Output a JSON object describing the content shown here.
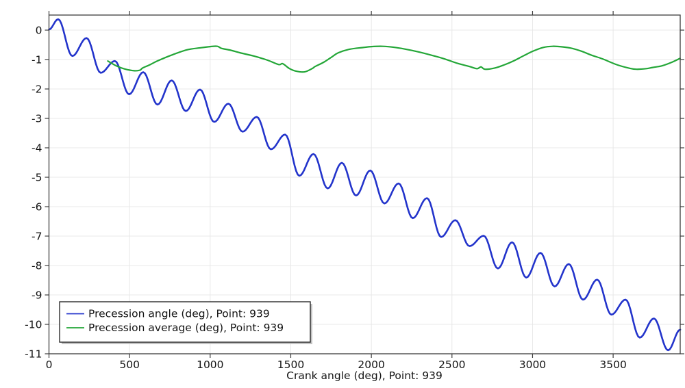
{
  "chart_data": {
    "type": "line",
    "title": "",
    "xlabel": "Crank angle (deg), Point: 939",
    "ylabel": "",
    "xlim": [
      0,
      3916
    ],
    "ylim": [
      -11,
      0.512
    ],
    "xticks": [
      0,
      500,
      1000,
      1500,
      2000,
      2500,
      3000,
      3500
    ],
    "yticks": [
      0,
      -1,
      -2,
      -3,
      -4,
      -5,
      -6,
      -7,
      -8,
      -9,
      -10,
      -11
    ],
    "grid": true,
    "legend_position": "bottom-left",
    "colors": {
      "grid": "#e8e8e8",
      "frame": "#3c3c3c",
      "text": "#141414",
      "legend_border": "#2b2b2b",
      "legend_shadow": "#b9b9b9"
    },
    "series": [
      {
        "name": "Precession angle (deg), Point: 939",
        "color": "#2334cb",
        "width": 2.6,
        "interpolation": "cosine-extrema",
        "points": [
          [
            0,
            0.02
          ],
          [
            57,
            0.37
          ],
          [
            145,
            -0.88
          ],
          [
            233,
            -0.27
          ],
          [
            321,
            -1.45
          ],
          [
            409,
            -1.05
          ],
          [
            497,
            -2.18
          ],
          [
            585,
            -1.43
          ],
          [
            673,
            -2.53
          ],
          [
            761,
            -1.71
          ],
          [
            849,
            -2.75
          ],
          [
            937,
            -2.02
          ],
          [
            1025,
            -3.12
          ],
          [
            1113,
            -2.5
          ],
          [
            1201,
            -3.45
          ],
          [
            1289,
            -2.95
          ],
          [
            1377,
            -4.05
          ],
          [
            1465,
            -3.55
          ],
          [
            1553,
            -4.95
          ],
          [
            1641,
            -4.21
          ],
          [
            1729,
            -5.38
          ],
          [
            1817,
            -4.51
          ],
          [
            1905,
            -5.62
          ],
          [
            1993,
            -4.77
          ],
          [
            2081,
            -5.89
          ],
          [
            2169,
            -5.21
          ],
          [
            2257,
            -6.39
          ],
          [
            2345,
            -5.71
          ],
          [
            2433,
            -7.03
          ],
          [
            2521,
            -6.46
          ],
          [
            2609,
            -7.34
          ],
          [
            2697,
            -6.99
          ],
          [
            2785,
            -8.1
          ],
          [
            2873,
            -7.21
          ],
          [
            2961,
            -8.41
          ],
          [
            3049,
            -7.57
          ],
          [
            3137,
            -8.71
          ],
          [
            3225,
            -7.95
          ],
          [
            3313,
            -9.16
          ],
          [
            3401,
            -8.48
          ],
          [
            3489,
            -9.67
          ],
          [
            3577,
            -9.16
          ],
          [
            3665,
            -10.45
          ],
          [
            3753,
            -9.8
          ],
          [
            3841,
            -10.88
          ],
          [
            3916,
            -10.18
          ]
        ]
      },
      {
        "name": "Precession average (deg), Point: 939",
        "color": "#23a637",
        "width": 2.2,
        "interpolation": "smooth",
        "points": [
          [
            365,
            -1.05
          ],
          [
            420,
            -1.22
          ],
          [
            470,
            -1.32
          ],
          [
            530,
            -1.38
          ],
          [
            565,
            -1.36
          ],
          [
            580,
            -1.29
          ],
          [
            625,
            -1.18
          ],
          [
            672,
            -1.05
          ],
          [
            760,
            -0.85
          ],
          [
            856,
            -0.67
          ],
          [
            941,
            -0.6
          ],
          [
            1000,
            -0.56
          ],
          [
            1045,
            -0.55
          ],
          [
            1070,
            -0.62
          ],
          [
            1125,
            -0.68
          ],
          [
            1185,
            -0.77
          ],
          [
            1270,
            -0.88
          ],
          [
            1355,
            -1.02
          ],
          [
            1425,
            -1.17
          ],
          [
            1450,
            -1.14
          ],
          [
            1490,
            -1.3
          ],
          [
            1530,
            -1.39
          ],
          [
            1585,
            -1.42
          ],
          [
            1635,
            -1.3
          ],
          [
            1650,
            -1.24
          ],
          [
            1705,
            -1.09
          ],
          [
            1755,
            -0.91
          ],
          [
            1795,
            -0.77
          ],
          [
            1865,
            -0.65
          ],
          [
            1950,
            -0.59
          ],
          [
            2000,
            -0.56
          ],
          [
            2070,
            -0.55
          ],
          [
            2135,
            -0.58
          ],
          [
            2205,
            -0.64
          ],
          [
            2285,
            -0.73
          ],
          [
            2365,
            -0.84
          ],
          [
            2455,
            -0.98
          ],
          [
            2535,
            -1.13
          ],
          [
            2605,
            -1.23
          ],
          [
            2655,
            -1.31
          ],
          [
            2680,
            -1.25
          ],
          [
            2705,
            -1.33
          ],
          [
            2765,
            -1.29
          ],
          [
            2825,
            -1.18
          ],
          [
            2885,
            -1.04
          ],
          [
            2945,
            -0.87
          ],
          [
            3005,
            -0.71
          ],
          [
            3065,
            -0.59
          ],
          [
            3125,
            -0.55
          ],
          [
            3185,
            -0.57
          ],
          [
            3245,
            -0.62
          ],
          [
            3305,
            -0.72
          ],
          [
            3365,
            -0.85
          ],
          [
            3435,
            -0.98
          ],
          [
            3525,
            -1.18
          ],
          [
            3605,
            -1.3
          ],
          [
            3645,
            -1.33
          ],
          [
            3705,
            -1.31
          ],
          [
            3745,
            -1.27
          ],
          [
            3805,
            -1.21
          ],
          [
            3865,
            -1.09
          ],
          [
            3915,
            -0.96
          ]
        ]
      }
    ]
  },
  "legend": {
    "entries": [
      {
        "label": "Precession angle (deg), Point: 939"
      },
      {
        "label": "Precession average (deg), Point: 939"
      }
    ]
  },
  "axis": {
    "x_title": "Crank angle (deg), Point: 939"
  }
}
